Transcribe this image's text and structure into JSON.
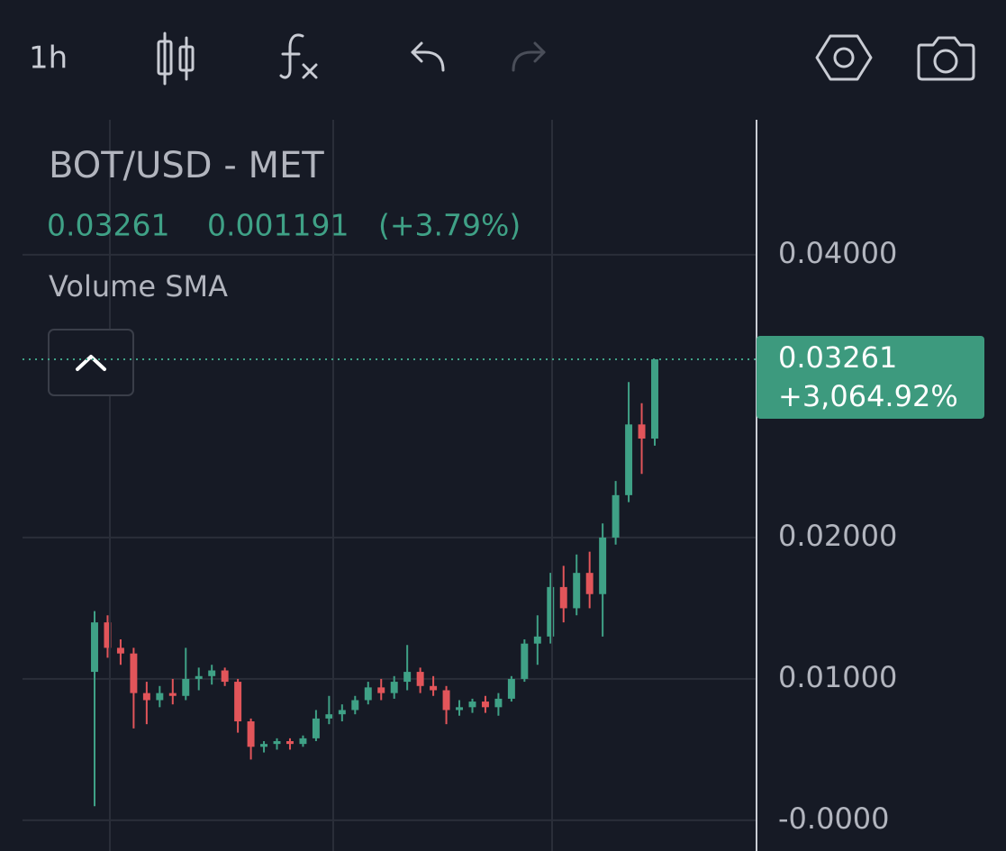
{
  "toolbar": {
    "interval": "1h"
  },
  "header": {
    "symbol": "BOT/USD - MET",
    "last": "0.03261",
    "change": "0.001191",
    "change_pct": "(+3.79%)",
    "indicator": "Volume SMA"
  },
  "chart_data": {
    "type": "candlestick",
    "ylim": [
      -0.00217,
      0.04955
    ],
    "yticks": [
      {
        "value": 0,
        "label": "-0.0000"
      },
      {
        "value": 0.01,
        "label": "0.01000"
      },
      {
        "value": 0.02,
        "label": "0.02000"
      },
      {
        "value": 0.04,
        "label": "0.04000"
      }
    ],
    "grid": true,
    "up_color": "#3fa186",
    "down_color": "#e2555a",
    "open": [
      0.0105,
      0.014,
      0.0122,
      0.0118,
      0.009,
      0.0085,
      0.009,
      0.0088,
      0.01,
      0.0102,
      0.0106,
      0.0098,
      0.007,
      0.0052,
      0.0054,
      0.0056,
      0.0054,
      0.0058,
      0.0072,
      0.0075,
      0.0078,
      0.0085,
      0.0094,
      0.009,
      0.0098,
      0.0105,
      0.0095,
      0.0092,
      0.0078,
      0.008,
      0.0084,
      0.008,
      0.0086,
      0.01,
      0.0125,
      0.013,
      0.0165,
      0.015,
      0.0175,
      0.016,
      0.02,
      0.023,
      0.028,
      0.027
    ],
    "high": [
      0.0148,
      0.0145,
      0.0128,
      0.0122,
      0.0098,
      0.0095,
      0.01,
      0.0122,
      0.0108,
      0.011,
      0.0108,
      0.01,
      0.0072,
      0.0056,
      0.0058,
      0.0058,
      0.006,
      0.0078,
      0.0088,
      0.0082,
      0.0088,
      0.0098,
      0.01,
      0.0102,
      0.0124,
      0.0108,
      0.0102,
      0.0095,
      0.0085,
      0.0086,
      0.0088,
      0.009,
      0.0102,
      0.0128,
      0.0145,
      0.0175,
      0.018,
      0.0188,
      0.019,
      0.021,
      0.024,
      0.031,
      0.0295,
      0.03261
    ],
    "low": [
      0.001,
      0.0115,
      0.011,
      0.0065,
      0.0068,
      0.008,
      0.0082,
      0.0085,
      0.0092,
      0.0096,
      0.0095,
      0.0062,
      0.0043,
      0.0048,
      0.005,
      0.005,
      0.0052,
      0.0056,
      0.0068,
      0.007,
      0.0075,
      0.0082,
      0.0085,
      0.0086,
      0.0092,
      0.009,
      0.0088,
      0.0068,
      0.0074,
      0.0076,
      0.0076,
      0.0074,
      0.0084,
      0.0098,
      0.011,
      0.0125,
      0.014,
      0.0145,
      0.015,
      0.013,
      0.0195,
      0.0225,
      0.0245,
      0.0265
    ],
    "close": [
      0.014,
      0.0122,
      0.0118,
      0.009,
      0.0085,
      0.009,
      0.0088,
      0.01,
      0.0102,
      0.0106,
      0.0098,
      0.007,
      0.0052,
      0.0054,
      0.0056,
      0.0054,
      0.0058,
      0.0072,
      0.0075,
      0.0078,
      0.0085,
      0.0094,
      0.009,
      0.0098,
      0.0105,
      0.0095,
      0.0092,
      0.0078,
      0.008,
      0.0084,
      0.008,
      0.0086,
      0.01,
      0.0125,
      0.013,
      0.0165,
      0.015,
      0.0175,
      0.016,
      0.02,
      0.023,
      0.028,
      0.027,
      0.03261
    ],
    "last_price": 0.03261,
    "last_change_pct": "+3,064.92%"
  }
}
